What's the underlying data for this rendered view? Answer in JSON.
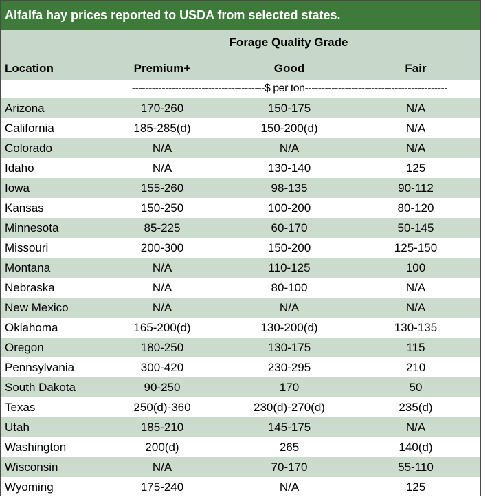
{
  "title": "Alfalfa hay prices reported to USDA from selected states.",
  "group_header": "Forage Quality Grade",
  "columns": {
    "location": "Location",
    "premium": "Premium+",
    "good": "Good",
    "fair": "Fair"
  },
  "units": "----------------------------------------$ per ton-------------------------------------------",
  "colors": {
    "title_bg": "#3e7a3a",
    "stripe": "#ccdccc",
    "header_bg": "#c8d8c8"
  },
  "rows": [
    {
      "location": "Arizona",
      "premium": "170-260",
      "good": "150-175",
      "fair": "N/A"
    },
    {
      "location": "California",
      "premium": "185-285(d)",
      "good": "150-200(d)",
      "fair": "N/A"
    },
    {
      "location": "Colorado",
      "premium": "N/A",
      "good": "N/A",
      "fair": "N/A"
    },
    {
      "location": "Idaho",
      "premium": "N/A",
      "good": "130-140",
      "fair": "125"
    },
    {
      "location": "Iowa",
      "premium": "155-260",
      "good": "98-135",
      "fair": "90-112"
    },
    {
      "location": "Kansas",
      "premium": "150-250",
      "good": "100-200",
      "fair": "80-120"
    },
    {
      "location": "Minnesota",
      "premium": "85-225",
      "good": "60-170",
      "fair": "50-145"
    },
    {
      "location": "Missouri",
      "premium": "200-300",
      "good": "150-200",
      "fair": "125-150"
    },
    {
      "location": "Montana",
      "premium": "N/A",
      "good": "110-125",
      "fair": "100"
    },
    {
      "location": "Nebraska",
      "premium": "N/A",
      "good": "80-100",
      "fair": "N/A"
    },
    {
      "location": "New Mexico",
      "premium": "N/A",
      "good": "N/A",
      "fair": "N/A"
    },
    {
      "location": "Oklahoma",
      "premium": "165-200(d)",
      "good": "130-200(d)",
      "fair": "130-135"
    },
    {
      "location": "Oregon",
      "premium": "180-250",
      "good": "130-175",
      "fair": "115"
    },
    {
      "location": "Pennsylvania",
      "premium": "300-420",
      "good": "230-295",
      "fair": "210"
    },
    {
      "location": "South Dakota",
      "premium": "90-250",
      "good": "170",
      "fair": "50"
    },
    {
      "location": "Texas",
      "premium": "250(d)-360",
      "good": "230(d)-270(d)",
      "fair": "235(d)"
    },
    {
      "location": "Utah",
      "premium": "185-210",
      "good": "145-175",
      "fair": "N/A"
    },
    {
      "location": "Washington",
      "premium": "200(d)",
      "good": "265",
      "fair": "140(d)"
    },
    {
      "location": "Wisconsin",
      "premium": "N/A",
      "good": "70-170",
      "fair": "55-110"
    },
    {
      "location": "Wyoming",
      "premium": "175-240",
      "good": "N/A",
      "fair": "125"
    }
  ]
}
